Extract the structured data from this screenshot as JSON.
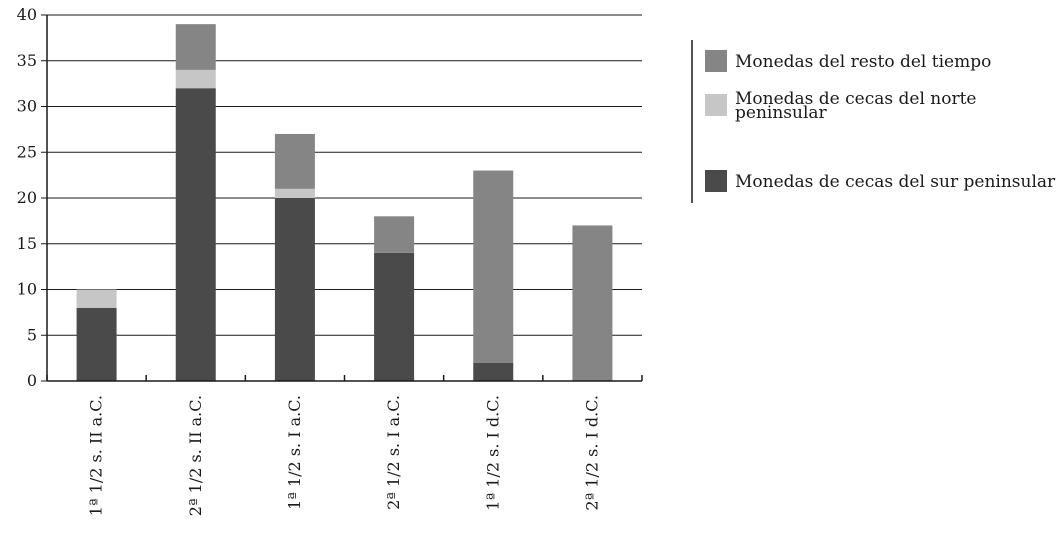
{
  "chart_data": {
    "type": "bar",
    "stacked": true,
    "title": "",
    "xlabel": "",
    "ylabel": "",
    "ylim": [
      0,
      40
    ],
    "yticks": [
      0,
      5,
      10,
      15,
      20,
      25,
      30,
      35,
      40
    ],
    "grid": true,
    "legend_position": "right",
    "categories": [
      "1ª 1/2 s. II a.C.",
      "2ª 1/2 s. II a.C.",
      "1ª 1/2 s. I a.C.",
      "2ª 1/2 s. I a.C.",
      "1ª 1/2 s. I d.C.",
      "2ª 1/2 s. I d.C."
    ],
    "series": [
      {
        "name": "Monedas de cecas del sur peninsular",
        "color": "#4a4a4a",
        "values": [
          8,
          32,
          20,
          14,
          2,
          0
        ]
      },
      {
        "name": "Monedas de cecas del norte peninsular",
        "color": "#c6c6c6",
        "values": [
          2,
          2,
          1,
          0,
          0,
          0
        ]
      },
      {
        "name": "Monedas del resto del tiempo",
        "color": "#858585",
        "values": [
          0,
          5,
          6,
          4,
          21,
          17
        ]
      }
    ],
    "legend_order": [
      "Monedas del resto del tiempo",
      "Monedas de cecas del norte peninsular",
      "Monedas de cecas del sur peninsular"
    ]
  }
}
